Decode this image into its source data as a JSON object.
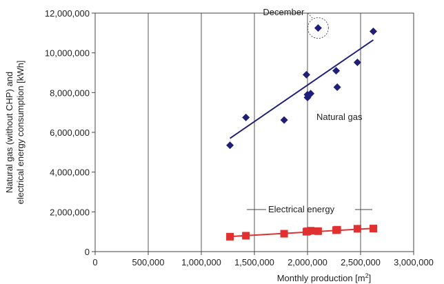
{
  "chart_data": {
    "type": "scatter",
    "xlabel": "Monthly production [m",
    "xlabel_sup": "2",
    "xlabel_suffix": "]",
    "ylabel_line1": "Natural gas (without CHP) and",
    "ylabel_line2": "electrical energy consumption [kWh]",
    "xlim": [
      0,
      3000000
    ],
    "ylim": [
      0,
      12000000
    ],
    "x_ticks": [
      0,
      500000,
      1000000,
      1500000,
      2000000,
      2500000,
      3000000
    ],
    "x_tick_labels": [
      "0",
      "500,000",
      "1,000,000",
      "1,500,000",
      "2,000,000",
      "2,500,000",
      "3,000,000"
    ],
    "y_ticks": [
      0,
      2000000,
      4000000,
      6000000,
      8000000,
      10000000,
      12000000
    ],
    "y_tick_labels": [
      "0",
      "2,000,000",
      "4,000,000",
      "6,000,000",
      "8,000,000",
      "10,000,000",
      "12,000,000"
    ],
    "grid": "vertical",
    "series": [
      {
        "name": "Natural gas",
        "marker": "diamond",
        "color": "#1f1f7a",
        "x": [
          1270000,
          1420000,
          1780000,
          1990000,
          2000000,
          2030000,
          2000000,
          2100000,
          2270000,
          2280000,
          2470000,
          2620000
        ],
        "y": [
          5350000,
          6750000,
          6620000,
          8900000,
          7750000,
          7950000,
          7900000,
          11250000,
          9100000,
          8270000,
          9520000,
          11080000
        ],
        "trend": [
          [
            1270000,
            5700000
          ],
          [
            2620000,
            10650000
          ]
        ]
      },
      {
        "name": "Electrical energy",
        "marker": "square",
        "color": "#e03030",
        "x": [
          1270000,
          1420000,
          1780000,
          1990000,
          2000000,
          2030000,
          2100000,
          2270000,
          2280000,
          2470000,
          2620000
        ],
        "y": [
          750000,
          800000,
          900000,
          1000000,
          1020000,
          1050000,
          1030000,
          1080000,
          1100000,
          1150000,
          1160000
        ],
        "trend": [
          [
            1270000,
            760000
          ],
          [
            2620000,
            1170000
          ]
        ]
      }
    ],
    "annotations": [
      {
        "text": "December",
        "target_x": 2100000,
        "target_y": 11250000
      }
    ]
  }
}
